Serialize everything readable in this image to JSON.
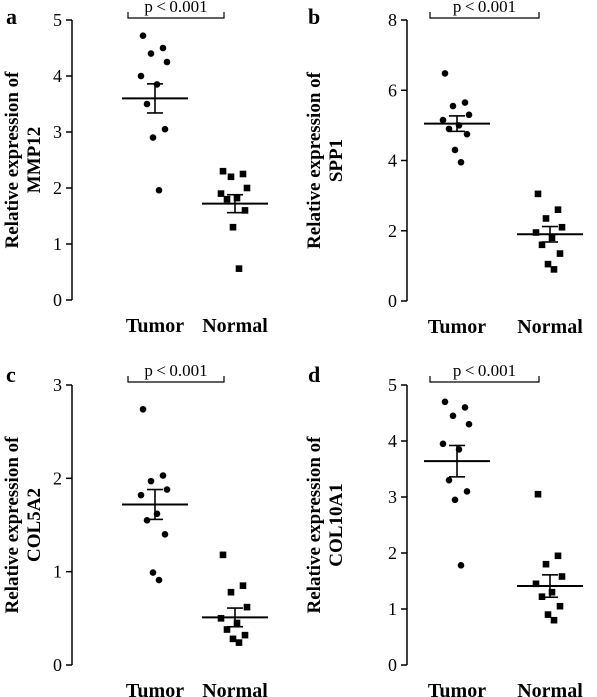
{
  "chart_data": [
    {
      "type": "scatter",
      "panel": "a",
      "ylabel": "Relative expression of MMP12",
      "ylabel_lines": [
        "Relative expression of",
        "MMP12"
      ],
      "ylim": [
        0,
        5
      ],
      "yticks": [
        0,
        1,
        2,
        3,
        4,
        5
      ],
      "categories": [
        "Tumor",
        "Normal"
      ],
      "significance": "p<0.001",
      "series": [
        {
          "category": "Tumor",
          "marker": "circle",
          "mean": 3.6,
          "sem": 0.26,
          "values": [
            4.72,
            4.5,
            4.4,
            4.25,
            4.0,
            3.85,
            3.5,
            3.05,
            2.9,
            1.96
          ]
        },
        {
          "category": "Normal",
          "marker": "square",
          "mean": 1.72,
          "sem": 0.16,
          "values": [
            2.3,
            2.25,
            2.2,
            2.0,
            1.9,
            1.82,
            1.8,
            1.6,
            1.3,
            0.56
          ]
        }
      ]
    },
    {
      "type": "scatter",
      "panel": "b",
      "ylabel": "Relative expression of SPP1",
      "ylabel_lines": [
        "Relative expression of",
        "SPP1"
      ],
      "ylim": [
        0,
        8
      ],
      "yticks": [
        0,
        2,
        4,
        6,
        8
      ],
      "categories": [
        "Tumor",
        "Normal"
      ],
      "significance": "p<0.001",
      "series": [
        {
          "category": "Tumor",
          "marker": "circle",
          "mean": 5.05,
          "sem": 0.22,
          "values": [
            6.48,
            5.65,
            5.55,
            5.3,
            5.15,
            5.0,
            4.9,
            4.75,
            4.3,
            3.95
          ]
        },
        {
          "category": "Normal",
          "marker": "square",
          "mean": 1.9,
          "sem": 0.22,
          "values": [
            3.05,
            2.6,
            2.35,
            2.1,
            1.95,
            1.8,
            1.6,
            1.35,
            1.05,
            0.9
          ]
        }
      ]
    },
    {
      "type": "scatter",
      "panel": "c",
      "ylabel": "Relative expression of COL5A2",
      "ylabel_lines": [
        "Relative expression of",
        "COL5A2"
      ],
      "ylim": [
        0,
        3
      ],
      "yticks": [
        0,
        1,
        2,
        3
      ],
      "categories": [
        "Tumor",
        "Normal"
      ],
      "significance": "p<0.001",
      "series": [
        {
          "category": "Tumor",
          "marker": "circle",
          "mean": 1.72,
          "sem": 0.16,
          "values": [
            2.74,
            2.03,
            1.97,
            1.88,
            1.82,
            1.62,
            1.55,
            1.4,
            0.99,
            0.91
          ]
        },
        {
          "category": "Normal",
          "marker": "square",
          "mean": 0.51,
          "sem": 0.1,
          "values": [
            1.18,
            0.85,
            0.78,
            0.62,
            0.5,
            0.45,
            0.38,
            0.32,
            0.28,
            0.24
          ]
        }
      ]
    },
    {
      "type": "scatter",
      "panel": "d",
      "ylabel": "Relative expression of COL10A1",
      "ylabel_lines": [
        "Relative expression of",
        "COL10A1"
      ],
      "ylim": [
        0,
        5
      ],
      "yticks": [
        0,
        1,
        2,
        3,
        4,
        5
      ],
      "categories": [
        "Tumor",
        "Normal"
      ],
      "significance": "p<0.001",
      "series": [
        {
          "category": "Tumor",
          "marker": "circle",
          "mean": 3.64,
          "sem": 0.28,
          "values": [
            4.7,
            4.6,
            4.45,
            4.3,
            3.95,
            3.85,
            3.3,
            3.1,
            2.95,
            1.78
          ]
        },
        {
          "category": "Normal",
          "marker": "square",
          "mean": 1.41,
          "sem": 0.2,
          "values": [
            3.05,
            1.95,
            1.8,
            1.58,
            1.45,
            1.3,
            1.22,
            1.05,
            0.9,
            0.8
          ]
        }
      ]
    }
  ]
}
